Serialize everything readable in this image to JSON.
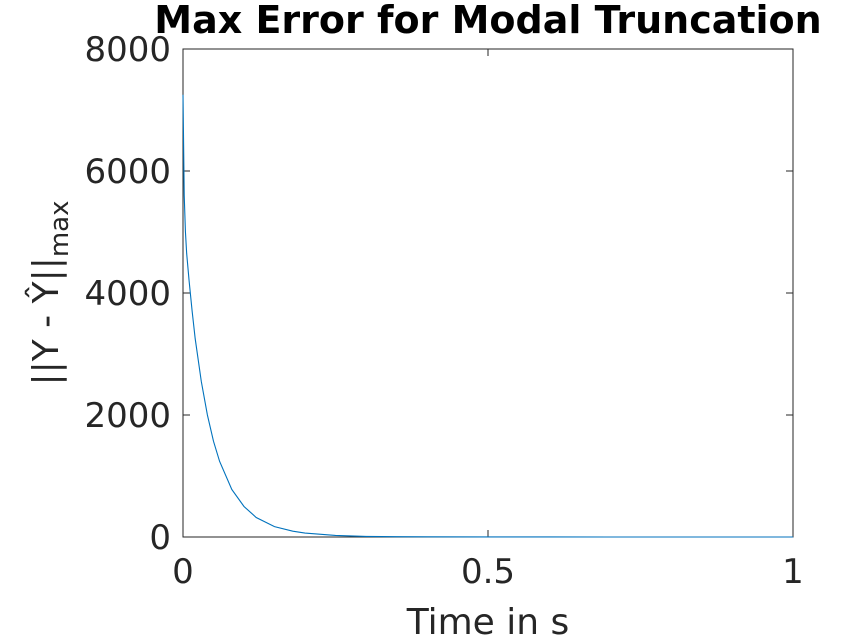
{
  "chart_data": {
    "type": "line",
    "title": "Max Error for Modal Truncation",
    "xlabel": "Time in s",
    "ylabel": "||Y - Ŷ||",
    "ylabel_subscript": "max",
    "xlim": [
      0,
      1
    ],
    "ylim": [
      0,
      8000
    ],
    "xticks": [
      0,
      0.5,
      1
    ],
    "yticks": [
      0,
      2000,
      4000,
      6000,
      8000
    ],
    "xtick_labels": [
      "0",
      "0.5",
      "1"
    ],
    "ytick_labels": [
      "0",
      "2000",
      "4000",
      "6000",
      "8000"
    ],
    "grid": false,
    "colors": {
      "series": "#0072BD",
      "axes": "#262626"
    },
    "series": [
      {
        "x": [
          0,
          0.002,
          0.004,
          0.006,
          0.01,
          0.015,
          0.02,
          0.03,
          0.04,
          0.05,
          0.06,
          0.08,
          0.1,
          0.12,
          0.15,
          0.18,
          0.2,
          0.25,
          0.3,
          0.35,
          0.4,
          0.5,
          0.6,
          0.7,
          0.8,
          0.9,
          1.0
        ],
        "values": [
          7250,
          5600,
          5000,
          4650,
          4200,
          3700,
          3250,
          2550,
          2000,
          1570,
          1240,
          780,
          500,
          320,
          170,
          95,
          65,
          25,
          10,
          5,
          3,
          1,
          0.5,
          0.2,
          0.1,
          0.05,
          0.02
        ]
      }
    ]
  }
}
